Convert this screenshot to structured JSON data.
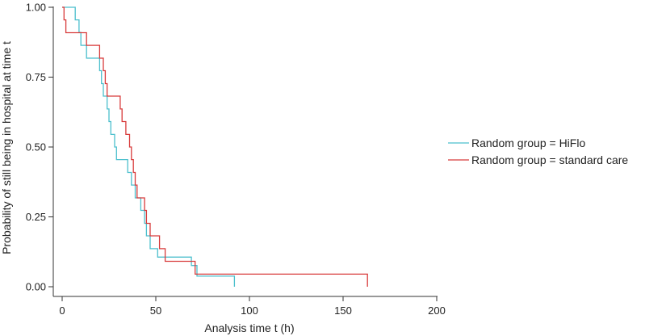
{
  "chart_data": {
    "type": "line",
    "step": true,
    "xlabel": "Analysis time t (h)",
    "ylabel": "Probability of still being in hospital at time t",
    "xlim": [
      0,
      200
    ],
    "ylim": [
      0,
      1
    ],
    "xticks": [
      "0",
      "50",
      "100",
      "150",
      "200"
    ],
    "yticks": [
      "0.00",
      "0.25",
      "0.50",
      "0.75",
      "1.00"
    ],
    "grid": false,
    "legend_position": "right",
    "series": [
      {
        "name": "Random group = HiFlo",
        "color": "#4bbfcd",
        "points": [
          [
            0,
            1.0
          ],
          [
            7,
            1.0
          ],
          [
            7,
            0.955
          ],
          [
            9,
            0.955
          ],
          [
            9,
            0.91
          ],
          [
            10,
            0.91
          ],
          [
            10,
            0.864
          ],
          [
            13,
            0.864
          ],
          [
            13,
            0.818
          ],
          [
            20,
            0.818
          ],
          [
            20,
            0.773
          ],
          [
            21,
            0.773
          ],
          [
            21,
            0.727
          ],
          [
            22,
            0.727
          ],
          [
            22,
            0.682
          ],
          [
            24,
            0.682
          ],
          [
            24,
            0.636
          ],
          [
            25,
            0.636
          ],
          [
            25,
            0.591
          ],
          [
            26,
            0.591
          ],
          [
            26,
            0.545
          ],
          [
            28,
            0.545
          ],
          [
            28,
            0.5
          ],
          [
            29,
            0.5
          ],
          [
            29,
            0.455
          ],
          [
            35,
            0.455
          ],
          [
            35,
            0.409
          ],
          [
            37,
            0.409
          ],
          [
            37,
            0.364
          ],
          [
            39,
            0.364
          ],
          [
            39,
            0.318
          ],
          [
            42,
            0.318
          ],
          [
            42,
            0.273
          ],
          [
            44,
            0.273
          ],
          [
            44,
            0.227
          ],
          [
            45,
            0.227
          ],
          [
            45,
            0.182
          ],
          [
            47,
            0.182
          ],
          [
            47,
            0.136
          ],
          [
            51,
            0.136
          ],
          [
            51,
            0.106
          ],
          [
            69,
            0.106
          ],
          [
            69,
            0.076
          ],
          [
            72,
            0.076
          ],
          [
            72,
            0.038
          ],
          [
            92,
            0.038
          ],
          [
            92,
            0.0
          ]
        ]
      },
      {
        "name": "Random group = standard care",
        "color": "#d83b3b",
        "points": [
          [
            0,
            1.0
          ],
          [
            1,
            1.0
          ],
          [
            1,
            0.955
          ],
          [
            2,
            0.955
          ],
          [
            2,
            0.909
          ],
          [
            8,
            0.909
          ],
          [
            8,
            0.909
          ],
          [
            13,
            0.909
          ],
          [
            13,
            0.864
          ],
          [
            20,
            0.864
          ],
          [
            20,
            0.818
          ],
          [
            22,
            0.818
          ],
          [
            22,
            0.773
          ],
          [
            23,
            0.773
          ],
          [
            23,
            0.727
          ],
          [
            24,
            0.727
          ],
          [
            24,
            0.682
          ],
          [
            31,
            0.682
          ],
          [
            31,
            0.636
          ],
          [
            32,
            0.636
          ],
          [
            32,
            0.591
          ],
          [
            34,
            0.591
          ],
          [
            34,
            0.545
          ],
          [
            36,
            0.545
          ],
          [
            36,
            0.5
          ],
          [
            37,
            0.5
          ],
          [
            37,
            0.455
          ],
          [
            38,
            0.455
          ],
          [
            38,
            0.409
          ],
          [
            39,
            0.409
          ],
          [
            39,
            0.364
          ],
          [
            40,
            0.364
          ],
          [
            40,
            0.318
          ],
          [
            44,
            0.318
          ],
          [
            44,
            0.273
          ],
          [
            45,
            0.273
          ],
          [
            45,
            0.227
          ],
          [
            47,
            0.227
          ],
          [
            47,
            0.182
          ],
          [
            52,
            0.182
          ],
          [
            52,
            0.136
          ],
          [
            55,
            0.136
          ],
          [
            55,
            0.091
          ],
          [
            71,
            0.091
          ],
          [
            71,
            0.045
          ],
          [
            163,
            0.045
          ],
          [
            163,
            0.0
          ]
        ]
      }
    ]
  }
}
